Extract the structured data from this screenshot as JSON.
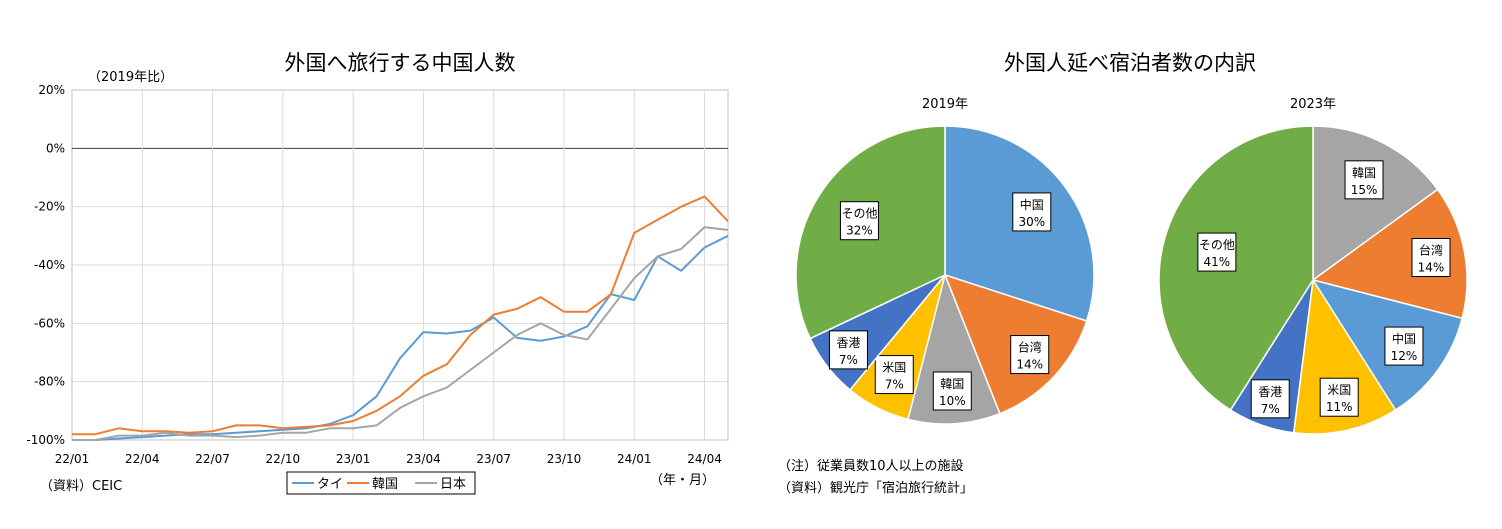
{
  "line_chart": {
    "title": "外国へ旅行する中国人数",
    "unit_label": "（2019年比）",
    "x_unit_label": "（年・月）",
    "source": "（資料）CEIC",
    "y_ticks": [
      "20%",
      "0%",
      "-20%",
      "-40%",
      "-60%",
      "-80%",
      "-100%"
    ],
    "x_ticks": [
      "22/01",
      "22/04",
      "22/07",
      "22/10",
      "23/01",
      "23/04",
      "23/07",
      "23/10",
      "24/01",
      "24/04"
    ],
    "legend": [
      "タイ",
      "韓国",
      "日本"
    ]
  },
  "pie_section": {
    "title": "外国人延べ宿泊者数の内訳",
    "note1": "（注）従業員数10人以上の施設",
    "note2": "（資料）観光庁「宿泊旅行統計」"
  },
  "chart_data": [
    {
      "type": "line",
      "title": "外国へ旅行する中国人数",
      "ylabel": "（2019年比）",
      "xlabel": "（年・月）",
      "ylim": [
        -100,
        20
      ],
      "y_unit": "%",
      "x": [
        "22/01",
        "22/02",
        "22/03",
        "22/04",
        "22/05",
        "22/06",
        "22/07",
        "22/08",
        "22/09",
        "22/10",
        "22/11",
        "22/12",
        "23/01",
        "23/02",
        "23/03",
        "23/04",
        "23/05",
        "23/06",
        "23/07",
        "23/08",
        "23/09",
        "23/10",
        "23/11",
        "23/12",
        "24/01",
        "24/02",
        "24/03",
        "24/04",
        "24/05"
      ],
      "series": [
        {
          "name": "タイ",
          "color": "#5b9bd5",
          "values": [
            -100,
            -100,
            -99.5,
            -99,
            -98.5,
            -98,
            -98,
            -97.5,
            -97,
            -96.5,
            -96,
            -94.5,
            -91.5,
            -85,
            -72,
            -63,
            -63.5,
            -62.5,
            -58,
            -65,
            -66,
            -64.5,
            -61,
            -50,
            -52,
            -37,
            -42,
            -34,
            -30
          ]
        },
        {
          "name": "韓国",
          "color": "#ed7d31",
          "values": [
            -98,
            -98,
            -96,
            -97,
            -97,
            -97.5,
            -97,
            -95,
            -95,
            -96,
            -95.5,
            -95,
            -93.5,
            -90,
            -85,
            -78,
            -74,
            -64,
            -57,
            -55,
            -51,
            -56,
            -56,
            -50,
            -29,
            -24.5,
            -20,
            -16.5,
            -25
          ]
        },
        {
          "name": "日本",
          "color": "#a5a5a5",
          "values": [
            -100,
            -100,
            -98.5,
            -98.5,
            -97.5,
            -98.5,
            -98.5,
            -99,
            -98.5,
            -97.5,
            -97.5,
            -96,
            -96,
            -95,
            -89,
            -85,
            -82,
            -76,
            -70,
            -64,
            -60,
            -64,
            -65.5,
            -55,
            -44.5,
            -37,
            -34.5,
            -27,
            -28
          ]
        }
      ]
    },
    {
      "type": "pie",
      "title": "2019年",
      "labels": [
        "中国",
        "台湾",
        "韓国",
        "米国",
        "香港",
        "その他"
      ],
      "values": [
        30,
        14,
        10,
        7,
        7,
        32
      ],
      "colors": [
        "#5b9bd5",
        "#ed7d31",
        "#a5a5a5",
        "#ffc000",
        "#4472c4",
        "#70ad47"
      ]
    },
    {
      "type": "pie",
      "title": "2023年",
      "labels": [
        "韓国",
        "台湾",
        "中国",
        "米国",
        "香港",
        "その他"
      ],
      "values": [
        15,
        14,
        12,
        11,
        7,
        41
      ],
      "colors": [
        "#a5a5a5",
        "#ed7d31",
        "#5b9bd5",
        "#ffc000",
        "#4472c4",
        "#70ad47"
      ]
    }
  ]
}
